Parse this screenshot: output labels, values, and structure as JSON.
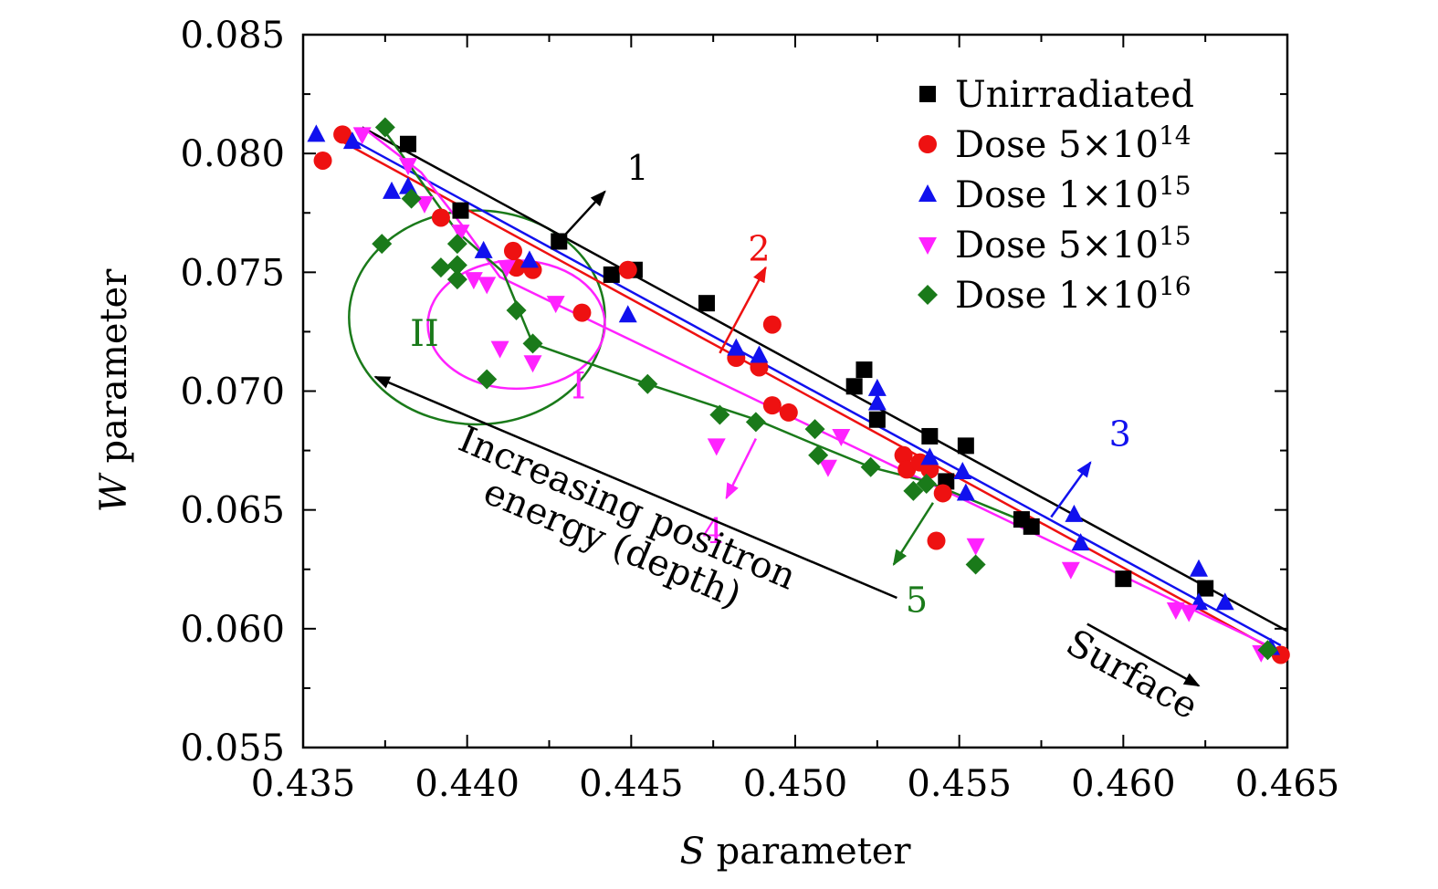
{
  "chart_data": {
    "type": "scatter",
    "title": "",
    "xlabel_italic": "S",
    "xlabel_rest": " parameter",
    "ylabel_italic": "W",
    "ylabel_rest": " parameter",
    "xlim": [
      0.435,
      0.465
    ],
    "ylim": [
      0.055,
      0.085
    ],
    "x_ticks": [
      0.435,
      0.44,
      0.445,
      0.45,
      0.455,
      0.46,
      0.465
    ],
    "x_tick_labels": [
      "0.435",
      "0.440",
      "0.445",
      "0.450",
      "0.455",
      "0.460",
      "0.465"
    ],
    "y_ticks": [
      0.055,
      0.06,
      0.065,
      0.07,
      0.075,
      0.08,
      0.085
    ],
    "y_tick_labels": [
      "0.055",
      "0.060",
      "0.065",
      "0.070",
      "0.075",
      "0.080",
      "0.085"
    ],
    "grid": false,
    "legend_position": "top-right",
    "series": [
      {
        "name": "Unirradiated",
        "dose_base": "",
        "dose_exp": "",
        "marker": "square",
        "color": "#000000",
        "points": [
          [
            0.4382,
            0.0804
          ],
          [
            0.4398,
            0.0776
          ],
          [
            0.4428,
            0.0763
          ],
          [
            0.4444,
            0.0749
          ],
          [
            0.4451,
            0.0751
          ],
          [
            0.4473,
            0.0737
          ],
          [
            0.4518,
            0.0702
          ],
          [
            0.4521,
            0.0709
          ],
          [
            0.4525,
            0.0688
          ],
          [
            0.4541,
            0.0681
          ],
          [
            0.4546,
            0.0662
          ],
          [
            0.4552,
            0.0677
          ],
          [
            0.4569,
            0.0646
          ],
          [
            0.4572,
            0.0643
          ],
          [
            0.46,
            0.0621
          ],
          [
            0.4625,
            0.0617
          ]
        ],
        "line": [
          [
            0.4368,
            0.0811
          ],
          [
            0.465,
            0.0599
          ]
        ]
      },
      {
        "name": "Dose 5×10",
        "dose_base": "Dose 5×10",
        "dose_exp": "14",
        "marker": "circle",
        "color": "#ee1111",
        "points": [
          [
            0.4356,
            0.0797
          ],
          [
            0.4362,
            0.0808
          ],
          [
            0.4392,
            0.0773
          ],
          [
            0.4414,
            0.0759
          ],
          [
            0.4415,
            0.0752
          ],
          [
            0.442,
            0.0751
          ],
          [
            0.4435,
            0.0733
          ],
          [
            0.4449,
            0.0751
          ],
          [
            0.4482,
            0.0714
          ],
          [
            0.4489,
            0.071
          ],
          [
            0.4493,
            0.0728
          ],
          [
            0.4493,
            0.0694
          ],
          [
            0.4498,
            0.0691
          ],
          [
            0.4533,
            0.0673
          ],
          [
            0.4534,
            0.0667
          ],
          [
            0.4538,
            0.067
          ],
          [
            0.4541,
            0.0667
          ],
          [
            0.4543,
            0.0637
          ],
          [
            0.4545,
            0.0657
          ],
          [
            0.4648,
            0.0589
          ]
        ],
        "line": [
          [
            0.4362,
            0.0805
          ],
          [
            0.465,
            0.0588
          ]
        ]
      },
      {
        "name": "Dose 1×10",
        "dose_base": "Dose 1×10",
        "dose_exp": "15",
        "marker": "triangle-up",
        "color": "#1111ee",
        "points": [
          [
            0.4354,
            0.0808
          ],
          [
            0.4365,
            0.0805
          ],
          [
            0.4377,
            0.0784
          ],
          [
            0.4382,
            0.0786
          ],
          [
            0.4405,
            0.0759
          ],
          [
            0.4419,
            0.0755
          ],
          [
            0.4449,
            0.0732
          ],
          [
            0.4482,
            0.0718
          ],
          [
            0.4489,
            0.0715
          ],
          [
            0.4525,
            0.0701
          ],
          [
            0.4525,
            0.0695
          ],
          [
            0.4541,
            0.0672
          ],
          [
            0.4551,
            0.0666
          ],
          [
            0.4552,
            0.0657
          ],
          [
            0.4585,
            0.0648
          ],
          [
            0.4587,
            0.0636
          ],
          [
            0.4623,
            0.0625
          ],
          [
            0.4623,
            0.0611
          ],
          [
            0.4631,
            0.0611
          ],
          [
            0.4645,
            0.0592
          ]
        ],
        "line": [
          [
            0.4362,
            0.0808
          ],
          [
            0.4648,
            0.0593
          ]
        ]
      },
      {
        "name": "Dose 5×10",
        "dose_base": "Dose 5×10",
        "dose_exp": "15",
        "marker": "triangle-down",
        "color": "#ff22ff",
        "points": [
          [
            0.4368,
            0.0808
          ],
          [
            0.4382,
            0.0795
          ],
          [
            0.4387,
            0.0779
          ],
          [
            0.4398,
            0.0767
          ],
          [
            0.4402,
            0.0747
          ],
          [
            0.4406,
            0.0745
          ],
          [
            0.4412,
            0.0752
          ],
          [
            0.441,
            0.0718
          ],
          [
            0.442,
            0.0712
          ],
          [
            0.4427,
            0.0737
          ],
          [
            0.4476,
            0.0677
          ],
          [
            0.451,
            0.0668
          ],
          [
            0.4514,
            0.0681
          ],
          [
            0.4555,
            0.0635
          ],
          [
            0.4584,
            0.0625
          ],
          [
            0.4616,
            0.0608
          ],
          [
            0.462,
            0.0607
          ],
          [
            0.4642,
            0.059
          ]
        ],
        "line": [
          [
            0.437,
            0.0809
          ],
          [
            0.4386,
            0.0792
          ],
          [
            0.44,
            0.0767
          ],
          [
            0.441,
            0.0748
          ],
          [
            0.4425,
            0.0738
          ],
          [
            0.465,
            0.0589
          ]
        ]
      },
      {
        "name": "Dose 1×10",
        "dose_base": "Dose 1×10",
        "dose_exp": "16",
        "marker": "diamond",
        "color": "#1a7a1a",
        "points": [
          [
            0.4374,
            0.0762
          ],
          [
            0.4375,
            0.0811
          ],
          [
            0.4383,
            0.0781
          ],
          [
            0.4392,
            0.0752
          ],
          [
            0.4397,
            0.0753
          ],
          [
            0.4397,
            0.0747
          ],
          [
            0.4397,
            0.0762
          ],
          [
            0.4406,
            0.0705
          ],
          [
            0.4415,
            0.0734
          ],
          [
            0.442,
            0.072
          ],
          [
            0.4455,
            0.0703
          ],
          [
            0.4477,
            0.069
          ],
          [
            0.4488,
            0.0687
          ],
          [
            0.4506,
            0.0684
          ],
          [
            0.4507,
            0.0673
          ],
          [
            0.4523,
            0.0668
          ],
          [
            0.4536,
            0.0658
          ],
          [
            0.454,
            0.0661
          ],
          [
            0.4555,
            0.0627
          ],
          [
            0.4644,
            0.0591
          ]
        ],
        "line": [
          [
            0.4374,
            0.0811
          ],
          [
            0.4383,
            0.0794
          ],
          [
            0.4397,
            0.0767
          ],
          [
            0.4411,
            0.075
          ],
          [
            0.442,
            0.072
          ],
          [
            0.4455,
            0.0703
          ],
          [
            0.4488,
            0.0688
          ],
          [
            0.4507,
            0.0677
          ],
          [
            0.4523,
            0.0668
          ],
          [
            0.454,
            0.0662
          ],
          [
            0.457,
            0.0645
          ]
        ]
      }
    ],
    "annotations": [
      {
        "label": "1",
        "color": "#000000",
        "text_at": [
          0.4452,
          0.0794
        ],
        "arrow_from": [
          0.4428,
          0.0763
        ],
        "arrow_to": [
          0.4442,
          0.0784
        ]
      },
      {
        "label": "2",
        "color": "#ee1111",
        "text_at": [
          0.4489,
          0.076
        ],
        "arrow_from": [
          0.4477,
          0.0716
        ],
        "arrow_to": [
          0.4491,
          0.0752
        ]
      },
      {
        "label": "3",
        "color": "#1111ee",
        "text_at": [
          0.4599,
          0.0682
        ],
        "arrow_from": [
          0.4578,
          0.0647
        ],
        "arrow_to": [
          0.459,
          0.067
        ]
      },
      {
        "label": "4",
        "color": "#ff22ff",
        "text_at": [
          0.4475,
          0.0641
        ],
        "arrow_from": [
          0.4488,
          0.068
        ],
        "arrow_to": [
          0.4479,
          0.0655
        ]
      },
      {
        "label": "5",
        "color": "#1a7a1a",
        "text_at": [
          0.4537,
          0.0612
        ],
        "arrow_from": [
          0.4542,
          0.0653
        ],
        "arrow_to": [
          0.453,
          0.0627
        ]
      }
    ],
    "region_labels": [
      {
        "label": "II",
        "color": "#1a7a1a",
        "text_at": [
          0.4387,
          0.0724
        ]
      },
      {
        "label": "I",
        "color": "#ff22ff",
        "text_at": [
          0.4434,
          0.0702
        ]
      }
    ],
    "regions": [
      {
        "name": "II",
        "color": "#1a7a1a",
        "center": [
          0.4403,
          0.0731
        ],
        "radius": [
          0.0039,
          0.0045
        ]
      },
      {
        "name": "I",
        "color": "#ff22ff",
        "center": [
          0.4415,
          0.0728
        ],
        "radius": [
          0.0027,
          0.0027
        ]
      }
    ],
    "direction_arrows": [
      {
        "text_lines": [
          "Increasing positron",
          "energy (depth)"
        ],
        "from": [
          0.4531,
          0.0613
        ],
        "to": [
          0.4372,
          0.0706
        ]
      },
      {
        "text_lines": [
          "Surface"
        ],
        "from": [
          0.4589,
          0.0602
        ],
        "to": [
          0.4623,
          0.0576
        ]
      }
    ]
  }
}
